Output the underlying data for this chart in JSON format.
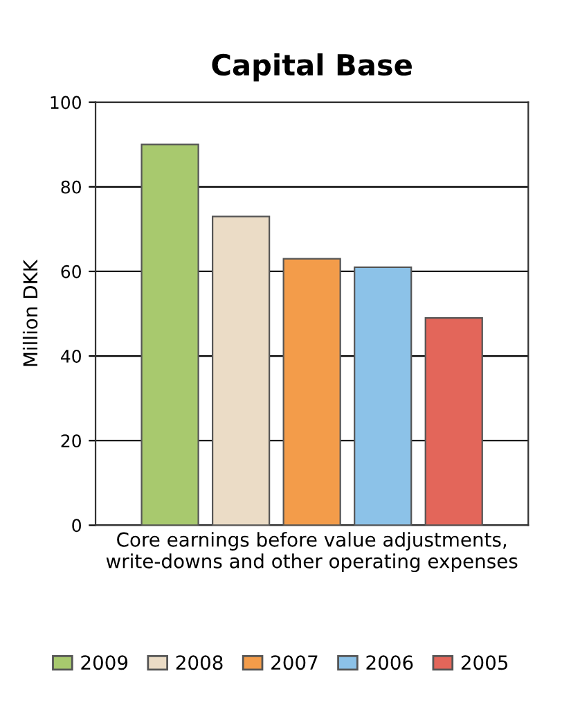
{
  "chart_data": {
    "type": "bar",
    "title": "Capital Base",
    "ylabel": "Million DKK",
    "categories": [
      "Core earnings before value adjustments, write-downs and other operating expenses"
    ],
    "series": [
      {
        "name": "2009",
        "color": "#a8c96e",
        "values": [
          90
        ]
      },
      {
        "name": "2008",
        "color": "#ebdcc6",
        "values": [
          73
        ]
      },
      {
        "name": "2007",
        "color": "#f39c4a",
        "values": [
          63
        ]
      },
      {
        "name": "2006",
        "color": "#8cc2e8",
        "values": [
          61
        ]
      },
      {
        "name": "2005",
        "color": "#e3665a",
        "values": [
          49
        ]
      }
    ],
    "ylim": [
      0,
      100
    ],
    "yticks": [
      0,
      20,
      40,
      60,
      80,
      100
    ],
    "grid": "y",
    "legend": "bottom"
  }
}
